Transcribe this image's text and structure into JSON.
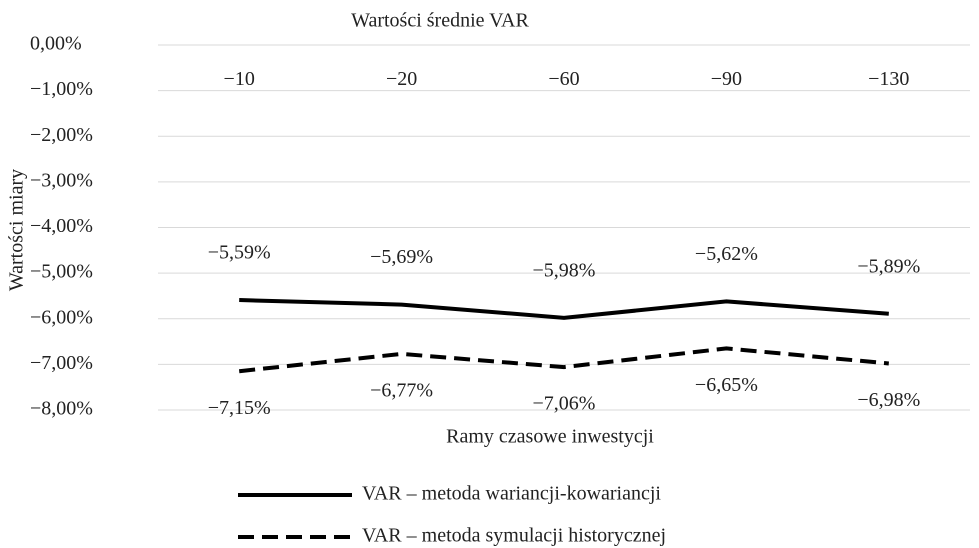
{
  "chart_data": {
    "type": "line",
    "title": "Wartości średnie VAR",
    "ylabel": "Wartości miary",
    "xlabel": "Ramy czasowe inwestycji",
    "categories": [
      "−10",
      "−20",
      "−60",
      "−90",
      "−130"
    ],
    "series": [
      {
        "name": "VAR – metoda wariancji-kowariancji",
        "color": "#000000",
        "line_style": "solid",
        "values": [
          -5.59,
          -5.69,
          -5.98,
          -5.62,
          -5.89
        ],
        "value_labels": [
          "−5,59%",
          "−5,69%",
          "−5,98%",
          "−5,62%",
          "−5,89%"
        ]
      },
      {
        "name": "VAR – metoda symulacji historycznej",
        "color": "#000000",
        "line_style": "dashed",
        "values": [
          -7.15,
          -6.77,
          -7.06,
          -6.65,
          -6.98
        ],
        "value_labels": [
          "−7,15%",
          "−6,77%",
          "−7,06%",
          "−6,65%",
          "−6,98%"
        ]
      }
    ],
    "ylim": [
      -8,
      0
    ],
    "yticks": [
      {
        "value": 0,
        "label": "0,00%"
      },
      {
        "value": -1,
        "label": "−1,00%"
      },
      {
        "value": -2,
        "label": "−2,00%"
      },
      {
        "value": -3,
        "label": "−3,00%"
      },
      {
        "value": -4,
        "label": "−4,00%"
      },
      {
        "value": -5,
        "label": "−5,00%"
      },
      {
        "value": -6,
        "label": "−6,00%"
      },
      {
        "value": -7,
        "label": "−7,00%"
      },
      {
        "value": -8,
        "label": "−8,00%"
      }
    ],
    "grid": true,
    "legend": "bottom"
  }
}
